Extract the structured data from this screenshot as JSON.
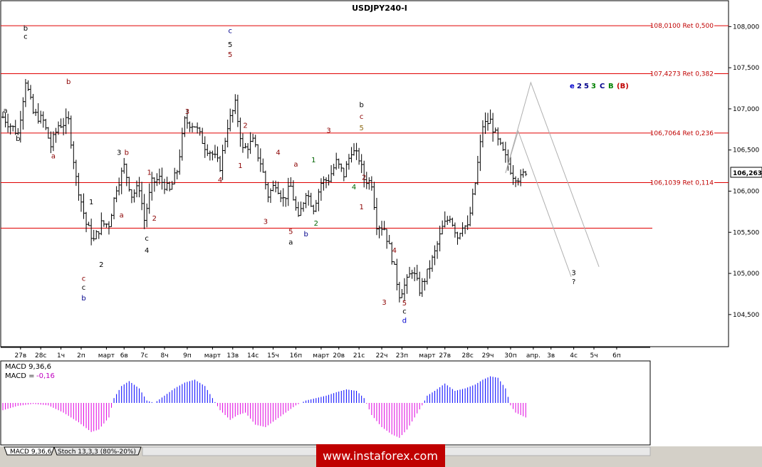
{
  "chart_data": {
    "type": "bar",
    "title": "USDJPY240-I",
    "symbol_badge": {
      "label": "106,263",
      "value": 106.263
    },
    "y_ticks": [
      {
        "v": 108.0,
        "label": "108,000"
      },
      {
        "v": 107.5,
        "label": "107,500"
      },
      {
        "v": 107.0,
        "label": "107,000"
      },
      {
        "v": 106.5,
        "label": "106,500"
      },
      {
        "v": 106.0,
        "label": "106,000"
      },
      {
        "v": 105.5,
        "label": "105,500"
      },
      {
        "v": 105.0,
        "label": "105,000"
      },
      {
        "v": 104.5,
        "label": "104,500"
      }
    ],
    "ylim": [
      104.17,
      108.15
    ],
    "x_count": 253,
    "x_labels": [
      {
        "i": 7,
        "label": "27в"
      },
      {
        "i": 15,
        "label": "28с"
      },
      {
        "i": 23,
        "label": "1ч"
      },
      {
        "i": 31,
        "label": "2п"
      },
      {
        "i": 41,
        "label": "март"
      },
      {
        "i": 48,
        "label": "6в"
      },
      {
        "i": 56,
        "label": "7с"
      },
      {
        "i": 64,
        "label": "8ч"
      },
      {
        "i": 73,
        "label": "9п"
      },
      {
        "i": 83,
        "label": "март"
      },
      {
        "i": 91,
        "label": "13в"
      },
      {
        "i": 99,
        "label": "14с"
      },
      {
        "i": 107,
        "label": "15ч"
      },
      {
        "i": 116,
        "label": "16п"
      },
      {
        "i": 126,
        "label": "март"
      },
      {
        "i": 133,
        "label": "20в"
      },
      {
        "i": 141,
        "label": "21с"
      },
      {
        "i": 150,
        "label": "22ч"
      },
      {
        "i": 158,
        "label": "23п"
      },
      {
        "i": 168,
        "label": "март"
      },
      {
        "i": 175,
        "label": "27в"
      },
      {
        "i": 184,
        "label": "28с"
      },
      {
        "i": 192,
        "label": "29ч"
      },
      {
        "i": 201,
        "label": "30п"
      },
      {
        "i": 210,
        "label": "апр."
      },
      {
        "i": 217,
        "label": "3в"
      },
      {
        "i": 226,
        "label": "4с"
      },
      {
        "i": 234,
        "label": "5ч"
      },
      {
        "i": 243,
        "label": "6п"
      }
    ],
    "levels": [
      {
        "value": 108.01,
        "label": "108,0100 Ret 0,500"
      },
      {
        "value": 107.4273,
        "label": "107,4273 Ret 0,382"
      },
      {
        "value": 106.7064,
        "label": "106,7064 Ret 0,236"
      },
      {
        "value": 106.1039,
        "label": "106,1039 Ret 0,114"
      },
      {
        "value": 105.55,
        "label": ""
      }
    ],
    "close_anchors": [
      [
        0,
        106.9
      ],
      [
        3,
        106.8
      ],
      [
        6,
        106.7
      ],
      [
        9,
        107.35
      ],
      [
        12,
        106.95
      ],
      [
        16,
        106.85
      ],
      [
        19,
        106.55
      ],
      [
        22,
        106.8
      ],
      [
        26,
        106.85
      ],
      [
        29,
        106.15
      ],
      [
        33,
        105.6
      ],
      [
        36,
        105.4
      ],
      [
        39,
        105.6
      ],
      [
        42,
        105.6
      ],
      [
        45,
        106.05
      ],
      [
        48,
        106.3
      ],
      [
        51,
        105.95
      ],
      [
        54,
        106.05
      ],
      [
        56,
        105.65
      ],
      [
        59,
        106.1
      ],
      [
        62,
        106.15
      ],
      [
        66,
        106.0
      ],
      [
        69,
        106.25
      ],
      [
        72,
        106.85
      ],
      [
        76,
        106.8
      ],
      [
        80,
        106.55
      ],
      [
        83,
        106.45
      ],
      [
        86,
        106.3
      ],
      [
        89,
        106.8
      ],
      [
        92,
        107.05
      ],
      [
        95,
        106.5
      ],
      [
        99,
        106.6
      ],
      [
        102,
        106.35
      ],
      [
        105,
        105.95
      ],
      [
        108,
        106.1
      ],
      [
        111,
        105.9
      ],
      [
        114,
        106.05
      ],
      [
        117,
        105.65
      ],
      [
        120,
        106.0
      ],
      [
        123,
        105.8
      ],
      [
        126,
        106.1
      ],
      [
        129,
        106.15
      ],
      [
        132,
        106.35
      ],
      [
        135,
        106.2
      ],
      [
        138,
        106.5
      ],
      [
        141,
        106.4
      ],
      [
        143,
        106.15
      ],
      [
        146,
        106.1
      ],
      [
        148,
        105.6
      ],
      [
        151,
        105.55
      ],
      [
        154,
        105.2
      ],
      [
        157,
        104.75
      ],
      [
        160,
        104.9
      ],
      [
        162,
        105.05
      ],
      [
        165,
        104.8
      ],
      [
        168,
        105.0
      ],
      [
        171,
        105.25
      ],
      [
        174,
        105.55
      ],
      [
        177,
        105.7
      ],
      [
        180,
        105.45
      ],
      [
        182,
        105.6
      ],
      [
        184,
        105.55
      ],
      [
        187,
        106.1
      ],
      [
        190,
        106.8
      ],
      [
        193,
        106.85
      ],
      [
        196,
        106.6
      ],
      [
        199,
        106.4
      ],
      [
        202,
        106.2
      ],
      [
        205,
        106.15
      ],
      [
        207,
        106.25
      ]
    ],
    "wave_labels": [
      {
        "i": 1,
        "v": 106.95,
        "text": "a",
        "color": "#000000"
      },
      {
        "i": 9,
        "v": 107.95,
        "text": "b",
        "color": "#000000"
      },
      {
        "i": 9,
        "v": 107.85,
        "text": "c",
        "color": "#000000"
      },
      {
        "i": 6,
        "v": 106.61,
        "text": "b",
        "color": "#000000"
      },
      {
        "i": 20,
        "v": 106.4,
        "text": "a",
        "color": "#8b0000"
      },
      {
        "i": 26,
        "v": 107.3,
        "text": "b",
        "color": "#8b0000"
      },
      {
        "i": 32,
        "v": 104.91,
        "text": "c",
        "color": "#8b0000"
      },
      {
        "i": 32,
        "v": 104.8,
        "text": "c",
        "color": "#000000"
      },
      {
        "i": 32,
        "v": 104.67,
        "text": "b",
        "color": "#00008b"
      },
      {
        "i": 35,
        "v": 105.84,
        "text": "1",
        "color": "#000000"
      },
      {
        "i": 39,
        "v": 105.08,
        "text": "2",
        "color": "#000000"
      },
      {
        "i": 47,
        "v": 105.68,
        "text": "a",
        "color": "#8b0000"
      },
      {
        "i": 46,
        "v": 106.44,
        "text": "3",
        "color": "#000000"
      },
      {
        "i": 49,
        "v": 106.44,
        "text": "b",
        "color": "#8b0000"
      },
      {
        "i": 58,
        "v": 106.2,
        "text": "1",
        "color": "#8b0000"
      },
      {
        "i": 60,
        "v": 105.64,
        "text": "2",
        "color": "#8b0000"
      },
      {
        "i": 57,
        "v": 105.4,
        "text": "c",
        "color": "#000000"
      },
      {
        "i": 57,
        "v": 105.25,
        "text": "4",
        "color": "#000000"
      },
      {
        "i": 73,
        "v": 106.94,
        "text": "3",
        "color": "#8b0000"
      },
      {
        "i": 86,
        "v": 106.11,
        "text": "4",
        "color": "#8b0000"
      },
      {
        "i": 90,
        "v": 107.63,
        "text": "5",
        "color": "#8b0000"
      },
      {
        "i": 90,
        "v": 107.75,
        "text": "5",
        "color": "#000000"
      },
      {
        "i": 90,
        "v": 107.92,
        "text": "c",
        "color": "#00008b"
      },
      {
        "i": 96,
        "v": 106.77,
        "text": "2",
        "color": "#8b0000"
      },
      {
        "i": 94,
        "v": 106.28,
        "text": "1",
        "color": "#8b0000"
      },
      {
        "i": 104,
        "v": 105.6,
        "text": "3",
        "color": "#8b0000"
      },
      {
        "i": 109,
        "v": 106.44,
        "text": "4",
        "color": "#8b0000"
      },
      {
        "i": 114,
        "v": 105.48,
        "text": "5",
        "color": "#8b0000"
      },
      {
        "i": 114,
        "v": 105.35,
        "text": "a",
        "color": "#000000"
      },
      {
        "i": 116,
        "v": 106.3,
        "text": "a",
        "color": "#8b0000"
      },
      {
        "i": 120,
        "v": 105.45,
        "text": "b",
        "color": "#00008b"
      },
      {
        "i": 123,
        "v": 106.35,
        "text": "1",
        "color": "#006400"
      },
      {
        "i": 124,
        "v": 105.58,
        "text": "2",
        "color": "#006400"
      },
      {
        "i": 129,
        "v": 106.71,
        "text": "3",
        "color": "#8b0000"
      },
      {
        "i": 142,
        "v": 107.02,
        "text": "b",
        "color": "#000000"
      },
      {
        "i": 142,
        "v": 106.88,
        "text": "c",
        "color": "#8b0000"
      },
      {
        "i": 142,
        "v": 106.74,
        "text": "5",
        "color": "#8b6914"
      },
      {
        "i": 139,
        "v": 106.02,
        "text": "4",
        "color": "#006400"
      },
      {
        "i": 143,
        "v": 106.14,
        "text": "2",
        "color": "#8b0000"
      },
      {
        "i": 142,
        "v": 105.78,
        "text": "1",
        "color": "#8b0000"
      },
      {
        "i": 151,
        "v": 104.62,
        "text": "3",
        "color": "#8b0000"
      },
      {
        "i": 155,
        "v": 105.25,
        "text": "4",
        "color": "#8b0000"
      },
      {
        "i": 159,
        "v": 104.61,
        "text": "5",
        "color": "#8b0000"
      },
      {
        "i": 159,
        "v": 104.51,
        "text": "c",
        "color": "#000000"
      },
      {
        "i": 159,
        "v": 104.4,
        "text": "d",
        "color": "#0000cd"
      }
    ],
    "forecast_path_1": [
      [
        199,
        106.22
      ],
      [
        209,
        107.32
      ],
      [
        236,
        105.08
      ]
    ],
    "forecast_path_2": [
      [
        199,
        106.22
      ],
      [
        204,
        106.73
      ],
      [
        225,
        104.96
      ]
    ],
    "forecast_labels": [
      {
        "i": 226,
        "v": 104.98,
        "text": "3",
        "color": "#000000"
      },
      {
        "i": 226,
        "v": 104.87,
        "text": "?",
        "color": "#000000"
      }
    ],
    "corner_wave_group": [
      {
        "text": "e",
        "color": "#0000cd"
      },
      {
        "text": "2",
        "color": "#00008b"
      },
      {
        "text": "5",
        "color": "#00008b"
      },
      {
        "text": "3",
        "color": "#008000"
      },
      {
        "text": "C",
        "color": "#00008b"
      },
      {
        "text": "B",
        "color": "#008000"
      },
      {
        "text": "(B)",
        "color": "#c00000"
      }
    ],
    "macd": {
      "label": "MACD 9,36,6",
      "value_label": "MACD =",
      "value": "-0,16",
      "histogram": [
        [
          0,
          -0.15
        ],
        [
          6,
          -0.06
        ],
        [
          12,
          -0.02
        ],
        [
          18,
          -0.05
        ],
        [
          24,
          -0.2
        ],
        [
          30,
          -0.4
        ],
        [
          35,
          -0.6
        ],
        [
          38,
          -0.55
        ],
        [
          42,
          -0.3
        ],
        [
          44,
          0.1
        ],
        [
          47,
          0.35
        ],
        [
          50,
          0.45
        ],
        [
          54,
          0.3
        ],
        [
          57,
          0.05
        ],
        [
          60,
          0.0
        ],
        [
          64,
          0.15
        ],
        [
          68,
          0.3
        ],
        [
          72,
          0.42
        ],
        [
          76,
          0.48
        ],
        [
          80,
          0.35
        ],
        [
          83,
          0.1
        ],
        [
          86,
          -0.15
        ],
        [
          90,
          -0.35
        ],
        [
          93,
          -0.25
        ],
        [
          96,
          -0.2
        ],
        [
          100,
          -0.45
        ],
        [
          104,
          -0.5
        ],
        [
          108,
          -0.35
        ],
        [
          112,
          -0.2
        ],
        [
          116,
          -0.05
        ],
        [
          120,
          0.05
        ],
        [
          124,
          0.1
        ],
        [
          128,
          0.15
        ],
        [
          132,
          0.22
        ],
        [
          136,
          0.28
        ],
        [
          140,
          0.25
        ],
        [
          143,
          0.1
        ],
        [
          146,
          -0.25
        ],
        [
          150,
          -0.5
        ],
        [
          154,
          -0.65
        ],
        [
          157,
          -0.72
        ],
        [
          160,
          -0.55
        ],
        [
          163,
          -0.3
        ],
        [
          166,
          -0.05
        ],
        [
          168,
          0.15
        ],
        [
          171,
          0.25
        ],
        [
          175,
          0.4
        ],
        [
          179,
          0.25
        ],
        [
          183,
          0.3
        ],
        [
          187,
          0.38
        ],
        [
          190,
          0.48
        ],
        [
          193,
          0.55
        ],
        [
          196,
          0.52
        ],
        [
          199,
          0.3
        ],
        [
          201,
          -0.05
        ],
        [
          203,
          -0.2
        ],
        [
          205,
          -0.25
        ],
        [
          207,
          -0.3
        ]
      ]
    },
    "tabs": [
      "MACD 9,36,6",
      "Stoch 13,3,3 (80%-20%)"
    ],
    "watermark": "www.instaforex.com"
  }
}
